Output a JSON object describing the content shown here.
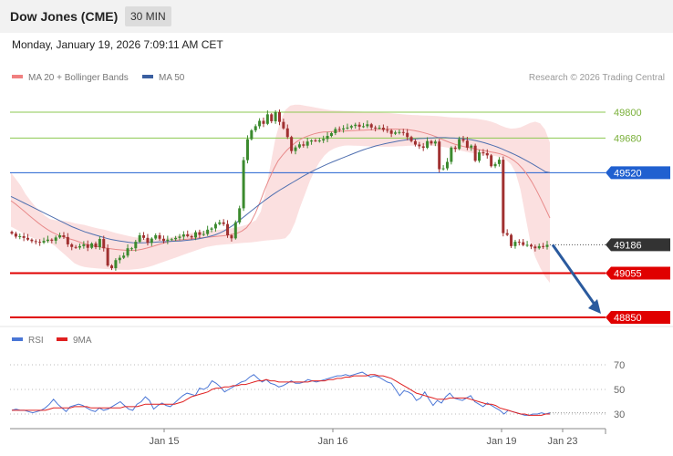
{
  "header": {
    "title": "Dow Jones (CME)",
    "timeframe": "30 MIN"
  },
  "datetime": "Monday, January 19, 2026 7:09:11 AM CET",
  "credit": "Research © 2026 Trading Central",
  "legend_main": [
    {
      "label": "MA 20 + Bollinger Bands",
      "color": "#f08080"
    },
    {
      "label": "MA 50",
      "color": "#3a5fa0"
    }
  ],
  "legend_rsi": [
    {
      "label": "RSI",
      "color": "#4a76d6"
    },
    {
      "label": "9MA",
      "color": "#e02020"
    }
  ],
  "colors": {
    "up_candle": "#3b8a2e",
    "down_candle": "#a03030",
    "band_fill": "#fbe0e0",
    "ma20": "#e88a8a",
    "ma50": "#5070b0",
    "resistance": "#8cc850",
    "pivot": "#2060d0",
    "support": "#e00000",
    "arrow": "#2a5a9e",
    "last_price_bg": "#333333"
  },
  "chart_data": [
    {
      "type": "candlestick",
      "y_unit": "index points",
      "x_tick_labels": [
        "Jan 15",
        "Jan 16",
        "Jan 19",
        "Jan 23"
      ],
      "levels": [
        {
          "value": 49800,
          "label": "49800",
          "kind": "resistance"
        },
        {
          "value": 49680,
          "label": "49680",
          "kind": "resistance"
        },
        {
          "value": 49520,
          "label": "49520",
          "kind": "pivot"
        },
        {
          "value": 49186,
          "label": "49186",
          "kind": "last"
        },
        {
          "value": 49055,
          "label": "49055",
          "kind": "support"
        },
        {
          "value": 48850,
          "label": "48850",
          "kind": "support"
        }
      ],
      "close": [
        49238,
        49224,
        49226,
        49218,
        49210,
        49203,
        49200,
        49196,
        49204,
        49210,
        49205,
        49220,
        49230,
        49222,
        49188,
        49176,
        49173,
        49180,
        49188,
        49172,
        49192,
        49175,
        49213,
        49170,
        49090,
        49078,
        49115,
        49126,
        49136,
        49170,
        49170,
        49200,
        49230,
        49218,
        49195,
        49215,
        49230,
        49214,
        49204,
        49210,
        49212,
        49218,
        49224,
        49234,
        49226,
        49220,
        49244,
        49232,
        49236,
        49256,
        49262,
        49282,
        49290,
        49282,
        49230,
        49216,
        49290,
        49355,
        49578,
        49675,
        49716,
        49735,
        49760,
        49746,
        49790,
        49758,
        49800,
        49755,
        49725,
        49685,
        49620,
        49637,
        49651,
        49645,
        49664,
        49669,
        49668,
        49669,
        49676,
        49690,
        49703,
        49722,
        49720,
        49725,
        49729,
        49736,
        49742,
        49733,
        49735,
        49744,
        49729,
        49726,
        49728,
        49718,
        49716,
        49700,
        49706,
        49708,
        49704,
        49685,
        49666,
        49650,
        49642,
        49635,
        49666,
        49655,
        49664,
        49536,
        49540,
        49570,
        49636,
        49630,
        49675,
        49668,
        49636,
        49645,
        49575,
        49614,
        49610,
        49600,
        49550,
        49560,
        49580,
        49240,
        49232,
        49180,
        49200,
        49198,
        49185,
        49186,
        49178,
        49170,
        49180,
        49176,
        49186
      ],
      "ma20": [
        49390,
        49375,
        49358,
        49340,
        49322,
        49305,
        49288,
        49272,
        49258,
        49245,
        49235,
        49227,
        49220,
        49213,
        49207,
        49200,
        49192,
        49186,
        49182,
        49178,
        49174,
        49171,
        49168,
        49165,
        49163,
        49161,
        49160,
        49160,
        49162,
        49166,
        49171,
        49177,
        49183,
        49190,
        49196,
        49201,
        49205,
        49208,
        49210,
        49212,
        49214,
        49216,
        49218,
        49220,
        49222,
        49224,
        49226,
        49228,
        49231,
        49235,
        49240,
        49250,
        49265,
        49292,
        49333,
        49385,
        49440,
        49490,
        49536,
        49575,
        49602,
        49625,
        49645,
        49662,
        49675,
        49685,
        49693,
        49700,
        49705,
        49708,
        49709,
        49710,
        49711,
        49712,
        49713,
        49714,
        49715,
        49716,
        49717,
        49718,
        49719,
        49720,
        49721,
        49722,
        49722,
        49722,
        49721,
        49720,
        49718,
        49715,
        49711,
        49706,
        49700,
        49693,
        49685,
        49676,
        49667,
        49659,
        49652,
        49646,
        49641,
        49636,
        49632,
        49628,
        49624,
        49620,
        49616,
        49612,
        49607,
        49600,
        49590,
        49577,
        49560,
        49538,
        49510,
        49478,
        49440,
        49398,
        49355,
        49310
      ],
      "bb_upper": [
        49520,
        49490,
        49460,
        49420,
        49390,
        49362,
        49340,
        49320,
        49305,
        49300,
        49298,
        49296,
        49292,
        49286,
        49282,
        49278,
        49272,
        49266,
        49261,
        49256,
        49250,
        49243,
        49237,
        49232,
        49227,
        49222,
        49218,
        49214,
        49212,
        49212,
        49212,
        49214,
        49217,
        49222,
        49228,
        49233,
        49238,
        49242,
        49245,
        49248,
        49250,
        49252,
        49254,
        49256,
        49259,
        49262,
        49266,
        49272,
        49278,
        49288,
        49300,
        49340,
        49440,
        49560,
        49680,
        49760,
        49810,
        49830,
        49835,
        49834,
        49830,
        49826,
        49822,
        49818,
        49814,
        49810,
        49808,
        49807,
        49806,
        49805,
        49804,
        49803,
        49802,
        49801,
        49800,
        49798,
        49797,
        49796,
        49794,
        49792,
        49790,
        49788,
        49787,
        49786,
        49785,
        49784,
        49783,
        49782,
        49780,
        49778,
        49776,
        49775,
        49774,
        49773,
        49771,
        49769,
        49766,
        49762,
        49756,
        49748,
        49738,
        49729,
        49724,
        49725,
        49730,
        49740,
        49750,
        49756,
        49748,
        49720,
        49660
      ],
      "bb_lower": [
        49270,
        49258,
        49246,
        49234,
        49222,
        49213,
        49206,
        49200,
        49195,
        49180,
        49160,
        49140,
        49120,
        49100,
        49090,
        49083,
        49080,
        49078,
        49076,
        49074,
        49073,
        49072,
        49071,
        49070,
        49070,
        49072,
        49074,
        49078,
        49083,
        49090,
        49098,
        49106,
        49114,
        49122,
        49130,
        49138,
        49146,
        49154,
        49162,
        49170,
        49176,
        49180,
        49184,
        49186,
        49188,
        49190,
        49192,
        49194,
        49196,
        49197,
        49200,
        49203,
        49206,
        49208,
        49210,
        49212,
        49216,
        49240,
        49290,
        49360,
        49420,
        49480,
        49530,
        49570,
        49600,
        49620,
        49632,
        49640,
        49645,
        49646,
        49645,
        49644,
        49643,
        49642,
        49641,
        49640,
        49640,
        49640,
        49641,
        49642,
        49643,
        49644,
        49645,
        49646,
        49646,
        49646,
        49645,
        49643,
        49640,
        49636,
        49631,
        49626,
        49621,
        49616,
        49611,
        49607,
        49604,
        49602,
        49600,
        49596,
        49590,
        49580,
        49560,
        49520,
        49440,
        49320,
        49200,
        49130,
        49080,
        49040,
        49010,
        48995,
        48985,
        48979
      ],
      "ma50": [
        49410,
        49400,
        49390,
        49380,
        49370,
        49360,
        49350,
        49340,
        49330,
        49320,
        49310,
        49300,
        49290,
        49280,
        49270,
        49262,
        49254,
        49246,
        49240,
        49234,
        49228,
        49222,
        49216,
        49211,
        49207,
        49204,
        49201,
        49198,
        49196,
        49195,
        49195,
        49196,
        49197,
        49198,
        49199,
        49200,
        49201,
        49202,
        49203,
        49204,
        49206,
        49208,
        49210,
        49213,
        49217,
        49221,
        49226,
        49232,
        49240,
        49250,
        49262,
        49275,
        49290,
        49306,
        49322,
        49338,
        49354,
        49370,
        49386,
        49400,
        49415,
        49428,
        49441,
        49453,
        49465,
        49477,
        49489,
        49501,
        49512,
        49523,
        49533,
        49543,
        49552,
        49561,
        49570,
        49578,
        49586,
        49594,
        49602,
        49610,
        49618,
        49625,
        49632,
        49638,
        49644,
        49649,
        49654,
        49658,
        49662,
        49666,
        49669,
        49672,
        49674,
        49676,
        49678,
        49679,
        49680,
        49681,
        49682,
        49682,
        49682,
        49681,
        49680,
        49679,
        49678,
        49675,
        49672,
        49668,
        49663,
        49658,
        49652,
        49645,
        49638,
        49630,
        49621,
        49612,
        49603,
        49593,
        49582,
        49571,
        49560,
        49548,
        49536,
        49524,
        49520
      ]
    },
    {
      "type": "line",
      "title": "",
      "y_tick_labels": [
        "70",
        "50",
        "30"
      ],
      "ylim": [
        23,
        77
      ],
      "series": [
        {
          "name": "RSI",
          "values": [
            33,
            34,
            33,
            33,
            32,
            31,
            32,
            33,
            35,
            38,
            42,
            38,
            35,
            32,
            36,
            37,
            38,
            37,
            35,
            33,
            32,
            35,
            33,
            34,
            36,
            38,
            40,
            37,
            34,
            33,
            38,
            40,
            44,
            41,
            34,
            37,
            39,
            37,
            36,
            39,
            42,
            45,
            47,
            46,
            45,
            51,
            50,
            52,
            57,
            55,
            52,
            48,
            50,
            52,
            54,
            56,
            57,
            60,
            62,
            59,
            56,
            58,
            55,
            54,
            52,
            53,
            55,
            57,
            55,
            55,
            56,
            58,
            57,
            56,
            57,
            58,
            59,
            60,
            61,
            61,
            62,
            61,
            62,
            63,
            64,
            62,
            60,
            61,
            60,
            58,
            56,
            55,
            50,
            45,
            49,
            48,
            46,
            41,
            43,
            48,
            42,
            37,
            41,
            39,
            44,
            47,
            43,
            42,
            41,
            43,
            45,
            40,
            38,
            36,
            39,
            37,
            35,
            33,
            30,
            33,
            32,
            31,
            30,
            29,
            29,
            30,
            30,
            31,
            30,
            31
          ]
        },
        {
          "name": "9MA",
          "values": [
            33,
            33,
            33,
            33,
            33,
            33,
            33,
            33,
            33,
            34,
            35,
            35,
            35,
            35,
            35,
            36,
            36,
            36,
            36,
            35,
            35,
            35,
            35,
            35,
            35,
            35,
            35,
            36,
            36,
            36,
            36,
            37,
            38,
            38,
            38,
            38,
            38,
            38,
            38,
            38,
            39,
            40,
            42,
            44,
            45,
            46,
            47,
            48,
            50,
            51,
            51,
            52,
            52,
            53,
            53,
            54,
            54,
            55,
            56,
            57,
            57,
            58,
            57,
            57,
            56,
            56,
            56,
            56,
            56,
            56,
            56,
            56,
            57,
            57,
            57,
            57,
            58,
            58,
            59,
            59,
            60,
            60,
            61,
            61,
            61,
            61,
            62,
            62,
            61,
            61,
            60,
            59,
            57,
            55,
            53,
            51,
            49,
            47,
            46,
            45,
            44,
            43,
            42,
            42,
            42,
            43,
            43,
            43,
            43,
            43,
            42,
            41,
            40,
            39,
            38,
            38,
            37,
            35,
            34,
            33,
            32,
            31,
            30,
            30,
            29,
            29,
            29,
            29,
            30,
            30
          ]
        }
      ]
    }
  ]
}
